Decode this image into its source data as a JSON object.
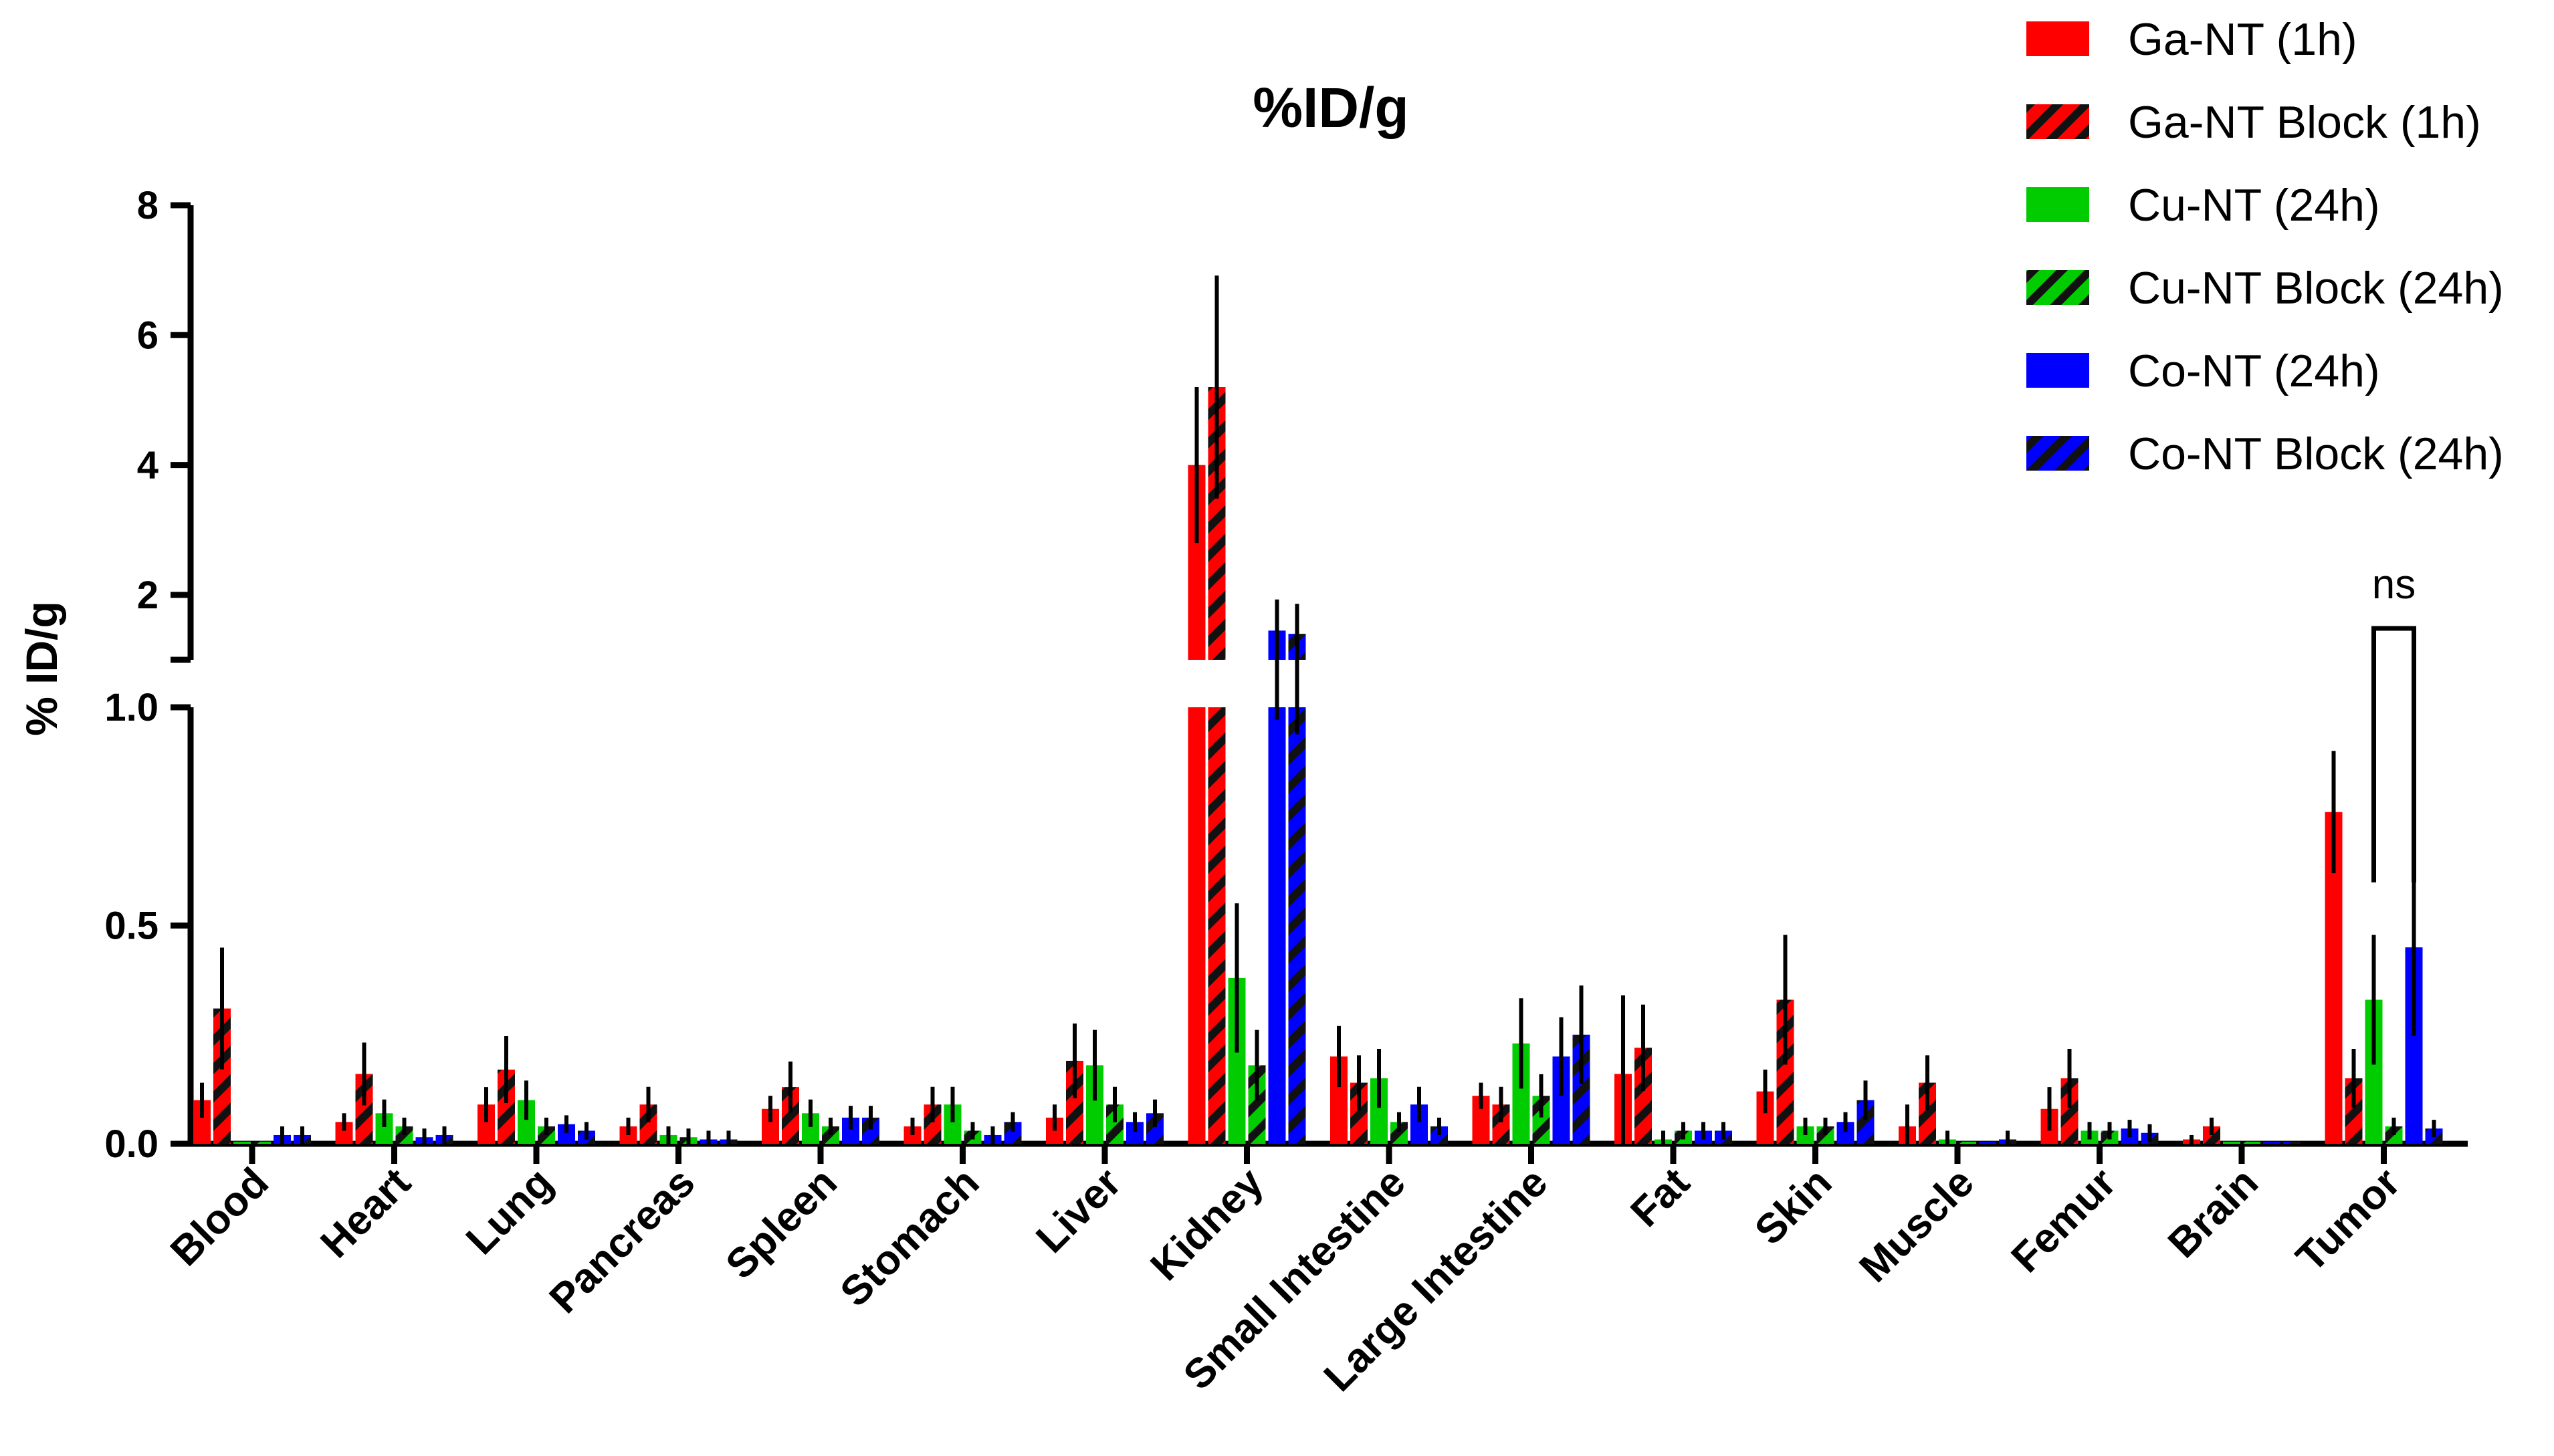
{
  "chart_data": {
    "type": "bar",
    "title": "%ID/g",
    "ylabel": "% ID/g",
    "xlabel": "",
    "y_axis": {
      "split": true,
      "lower_range": [
        0,
        1.0
      ],
      "lower_ticks": [
        "0.0",
        "0.5",
        "1.0"
      ],
      "lower_tick_values": [
        0,
        0.5,
        1.0
      ],
      "upper_range": [
        1.0,
        8
      ],
      "upper_ticks": [
        "2",
        "4",
        "6",
        "8"
      ],
      "upper_tick_values": [
        2,
        4,
        6,
        8
      ]
    },
    "legend_position": "top-right",
    "categories": [
      "Blood",
      "Heart",
      "Lung",
      "Pancreas",
      "Spleen",
      "Stomach",
      "Liver",
      "Kidney",
      "Small Intestine",
      "Large Intestine",
      "Fat",
      "Skin",
      "Muscle",
      "Femur",
      "Brain",
      "Tumor"
    ],
    "series": [
      {
        "name": "Ga-NT (1h)",
        "color": "#ff0000",
        "hatched": false,
        "values": [
          0.1,
          0.05,
          0.09,
          0.04,
          0.08,
          0.04,
          0.06,
          4.0,
          0.2,
          0.11,
          0.16,
          0.12,
          0.04,
          0.08,
          0.01,
          0.76
        ],
        "errors": [
          0.04,
          0.02,
          0.04,
          0.02,
          0.03,
          0.02,
          0.03,
          1.2,
          0.07,
          0.03,
          0.18,
          0.05,
          0.05,
          0.05,
          0.01,
          0.14
        ]
      },
      {
        "name": "Ga-NT Block (1h)",
        "color": "#ff0000",
        "hatched": true,
        "values": [
          0.31,
          0.16,
          0.17,
          0.09,
          0.13,
          0.09,
          0.19,
          5.2,
          0.14,
          0.09,
          0.22,
          0.33,
          0.14,
          0.15,
          0.04,
          0.15
        ]
      },
      {
        "name": "Cu-NT (24h)",
        "color": "#00cc00",
        "hatched": false,
        "values": [
          0.005,
          0.07,
          0.1,
          0.02,
          0.07,
          0.09,
          0.18,
          0.38,
          0.15,
          0.23,
          0.01,
          0.04,
          0.01,
          0.03,
          0.005,
          0.33
        ]
      },
      {
        "name": "Cu-NT Block (24h)",
        "color": "#00cc00",
        "hatched": true,
        "values": [
          0.005,
          0.04,
          0.04,
          0.015,
          0.04,
          0.03,
          0.09,
          0.18,
          0.05,
          0.11,
          0.03,
          0.04,
          0.005,
          0.03,
          0.005,
          0.04
        ]
      },
      {
        "name": "Co-NT (24h)",
        "color": "#0000ff",
        "hatched": false,
        "values": [
          0.02,
          0.015,
          0.045,
          0.01,
          0.06,
          0.02,
          0.05,
          1.45,
          0.09,
          0.2,
          0.03,
          0.05,
          0.005,
          0.035,
          0.005,
          0.45
        ]
      },
      {
        "name": "Co-NT Block (24h)",
        "color": "#0000ff",
        "hatched": true,
        "values": [
          0.02,
          0.02,
          0.03,
          0.01,
          0.06,
          0.05,
          0.07,
          1.4,
          0.04,
          0.25,
          0.03,
          0.1,
          0.01,
          0.025,
          0.005,
          0.035
        ]
      }
    ],
    "annotations": [
      {
        "text": "ns",
        "category": "Tumor",
        "between": [
          "Cu-NT (24h)",
          "Co-NT (24h)"
        ]
      }
    ]
  }
}
